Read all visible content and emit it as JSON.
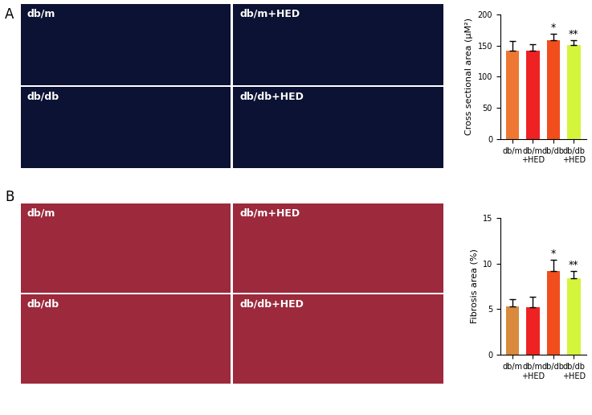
{
  "panels": [
    {
      "label": "A",
      "kind": "fluorescence",
      "images": [
        "db/m",
        "db/m+HED",
        "db/db",
        "db/db+HED"
      ]
    },
    {
      "label": "B",
      "kind": "trichrome",
      "images": [
        "db/m",
        "db/m+HED",
        "db/db",
        "db/db+HED"
      ]
    }
  ],
  "chart_data": [
    {
      "type": "bar",
      "y_label": "Cross sectional area (μM²)",
      "categories": [
        "db/m",
        "db/m\n+HED",
        "db/db",
        "db/db\n+HED"
      ],
      "values": [
        142,
        142,
        159,
        151
      ],
      "error": [
        15,
        10,
        10,
        8
      ],
      "significance": [
        null,
        null,
        "*",
        "**"
      ],
      "colors": [
        "#ee7733",
        "#ee2222",
        "#f24d1c",
        "#d4f53c"
      ],
      "ylim": [
        0,
        200
      ],
      "yticks": [
        0,
        50,
        100,
        150,
        200
      ],
      "grid": false
    },
    {
      "type": "bar",
      "y_label": "Fibrosis area (%)",
      "categories": [
        "db/m",
        "db/m\n+HED",
        "db/db",
        "db/db\n+HED"
      ],
      "values": [
        5.3,
        5.2,
        9.2,
        8.4
      ],
      "error": [
        0.8,
        1.2,
        1.2,
        0.8
      ],
      "significance": [
        null,
        null,
        "*",
        "**"
      ],
      "colors": [
        "#d98a3d",
        "#ee2222",
        "#f24d1c",
        "#d4f53c"
      ],
      "ylim": [
        0,
        15
      ],
      "yticks": [
        0,
        5,
        10,
        15
      ],
      "grid": false
    }
  ]
}
